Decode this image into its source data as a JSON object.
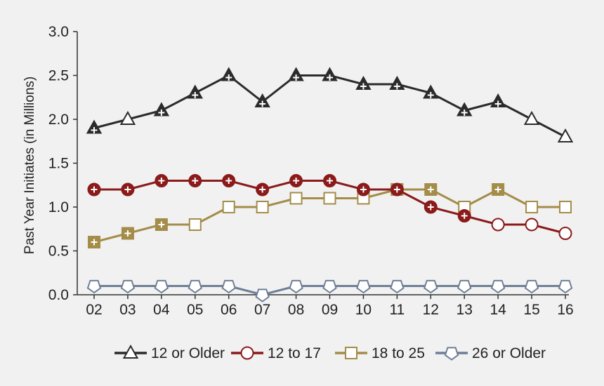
{
  "chart_data": {
    "type": "line",
    "ylabel": "Past Year Initiates (in Millions)",
    "xlabel": "",
    "ylim": [
      0,
      3.0
    ],
    "yticks": [
      "0.0",
      "0.5",
      "1.0",
      "1.5",
      "2.0",
      "2.5",
      "3.0"
    ],
    "categories": [
      "02",
      "03",
      "04",
      "05",
      "06",
      "07",
      "08",
      "09",
      "10",
      "11",
      "12",
      "13",
      "14",
      "15",
      "16"
    ],
    "grid": false,
    "legend_position": "bottom",
    "series": [
      {
        "name": "12 or Older",
        "color": "#2b2b2b",
        "marker": "triangle",
        "values": [
          1.9,
          2.0,
          2.1,
          2.3,
          2.5,
          2.2,
          2.5,
          2.5,
          2.4,
          2.4,
          2.3,
          2.1,
          2.2,
          2.0,
          1.8
        ],
        "significant": [
          true,
          false,
          true,
          true,
          true,
          true,
          true,
          true,
          true,
          true,
          true,
          true,
          true,
          false,
          false
        ]
      },
      {
        "name": "12 to 17",
        "color": "#8b1a1a",
        "marker": "circle",
        "values": [
          1.2,
          1.2,
          1.3,
          1.3,
          1.3,
          1.2,
          1.3,
          1.3,
          1.2,
          1.2,
          1.0,
          0.9,
          0.8,
          0.8,
          0.7
        ],
        "significant": [
          true,
          true,
          true,
          true,
          true,
          true,
          true,
          true,
          true,
          true,
          true,
          true,
          false,
          false,
          false
        ]
      },
      {
        "name": "18 to 25",
        "color": "#a48c49",
        "marker": "square",
        "values": [
          0.6,
          0.7,
          0.8,
          0.8,
          1.0,
          1.0,
          1.1,
          1.1,
          1.1,
          1.2,
          1.2,
          1.0,
          1.2,
          1.0,
          1.0
        ],
        "significant": [
          true,
          true,
          true,
          false,
          false,
          false,
          false,
          false,
          false,
          true,
          true,
          false,
          true,
          false,
          false
        ]
      },
      {
        "name": "26 or Older",
        "color": "#6e7f96",
        "marker": "pentagon",
        "values": [
          0.1,
          0.1,
          0.1,
          0.1,
          0.1,
          0.0,
          0.1,
          0.1,
          0.1,
          0.1,
          0.1,
          0.1,
          0.1,
          0.1,
          0.1
        ],
        "significant": [
          false,
          false,
          false,
          false,
          false,
          false,
          false,
          false,
          false,
          false,
          false,
          false,
          false,
          false,
          false
        ]
      }
    ]
  }
}
